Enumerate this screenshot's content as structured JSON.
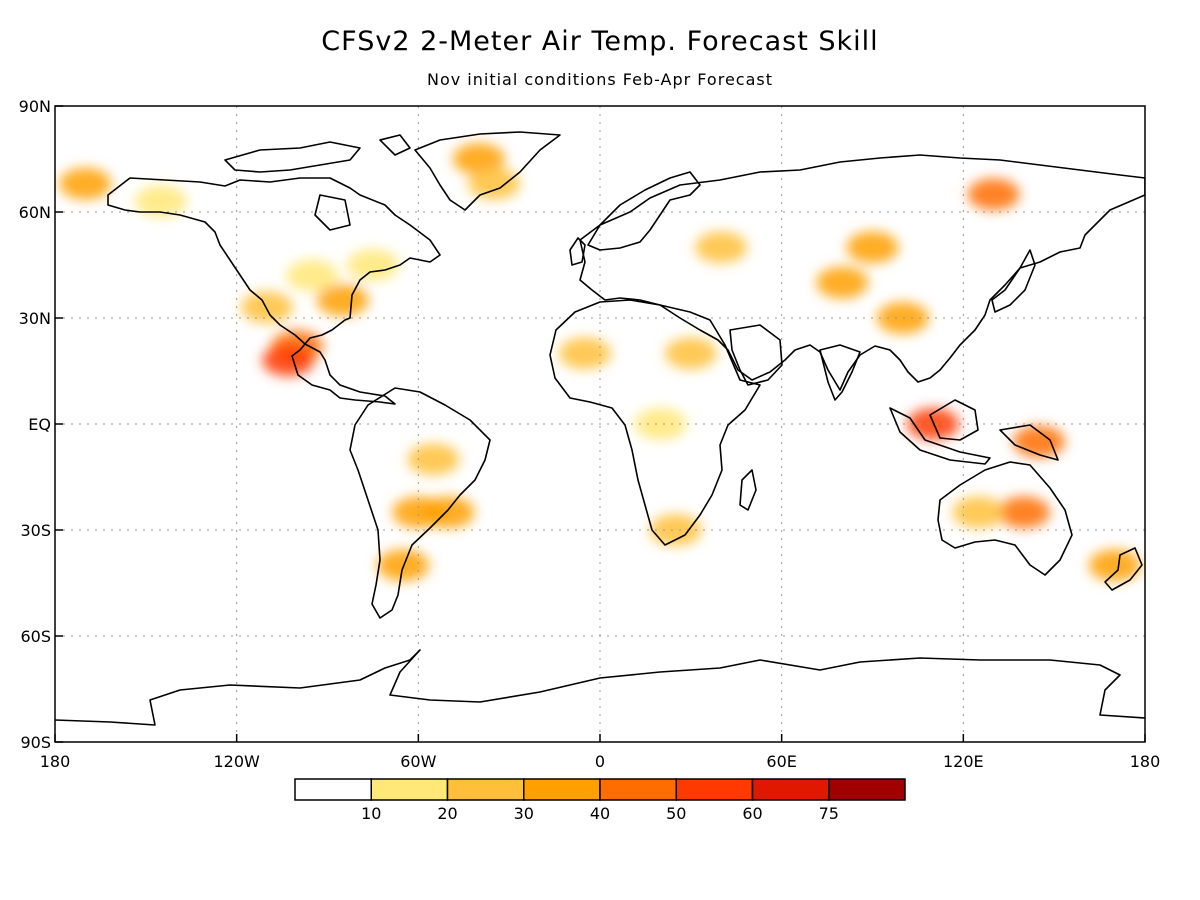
{
  "title": "CFSv2 2-Meter Air Temp. Forecast Skill",
  "subtitle": "Nov initial conditions  Feb-Apr Forecast",
  "lat_ticks": [
    "90N",
    "60N",
    "30N",
    "EQ",
    "30S",
    "60S",
    "90S"
  ],
  "lon_ticks": [
    "180",
    "120W",
    "60W",
    "0",
    "60E",
    "120E",
    "180"
  ],
  "colorbar": {
    "labels": [
      "10",
      "20",
      "30",
      "40",
      "50",
      "60",
      "75"
    ],
    "colors": [
      "#ffffff",
      "#ffe877",
      "#ffbf3a",
      "#ff9f00",
      "#ff6c00",
      "#ff3a00",
      "#e01800",
      "#a00000"
    ]
  },
  "chart_data": {
    "type": "heatmap",
    "title": "CFSv2 2-Meter Air Temp. Forecast Skill",
    "subtitle": "Nov initial conditions  Feb-Apr Forecast",
    "x_axis": {
      "ticks": [
        "180",
        "120W",
        "60W",
        "0",
        "60E",
        "120E",
        "180"
      ],
      "range": [
        -180,
        180
      ]
    },
    "y_axis": {
      "ticks": [
        "90N",
        "60N",
        "30N",
        "EQ",
        "30S",
        "60S",
        "90S"
      ],
      "range": [
        -90,
        90
      ]
    },
    "grid": true,
    "legend": "bottom colorbar",
    "levels": [
      10,
      20,
      30,
      40,
      50,
      60,
      75
    ],
    "regions": [
      {
        "lon": -170,
        "lat": 68,
        "v": 30
      },
      {
        "lon": -145,
        "lat": 63,
        "v": 12
      },
      {
        "lon": -40,
        "lat": 75,
        "v": 30
      },
      {
        "lon": -35,
        "lat": 68,
        "v": 20
      },
      {
        "lon": -110,
        "lat": 33,
        "v": 20
      },
      {
        "lon": -100,
        "lat": 22,
        "v": 40
      },
      {
        "lon": -103,
        "lat": 18,
        "v": 55
      },
      {
        "lon": -85,
        "lat": 35,
        "v": 30
      },
      {
        "lon": -95,
        "lat": 42,
        "v": 15
      },
      {
        "lon": -75,
        "lat": 45,
        "v": 12
      },
      {
        "lon": -60,
        "lat": -25,
        "v": 35
      },
      {
        "lon": -50,
        "lat": -25,
        "v": 30
      },
      {
        "lon": -55,
        "lat": -10,
        "v": 20
      },
      {
        "lon": -65,
        "lat": -40,
        "v": 30
      },
      {
        "lon": -5,
        "lat": 20,
        "v": 20
      },
      {
        "lon": 30,
        "lat": 20,
        "v": 20
      },
      {
        "lon": 25,
        "lat": -30,
        "v": 20
      },
      {
        "lon": 20,
        "lat": 0,
        "v": 15
      },
      {
        "lon": 40,
        "lat": 50,
        "v": 25
      },
      {
        "lon": 80,
        "lat": 40,
        "v": 35
      },
      {
        "lon": 90,
        "lat": 50,
        "v": 30
      },
      {
        "lon": 100,
        "lat": 30,
        "v": 35
      },
      {
        "lon": 130,
        "lat": 65,
        "v": 40
      },
      {
        "lon": 110,
        "lat": 0,
        "v": 55
      },
      {
        "lon": 145,
        "lat": -5,
        "v": 45
      },
      {
        "lon": 140,
        "lat": -25,
        "v": 40
      },
      {
        "lon": 125,
        "lat": -25,
        "v": 20
      },
      {
        "lon": 170,
        "lat": -40,
        "v": 35
      }
    ]
  }
}
